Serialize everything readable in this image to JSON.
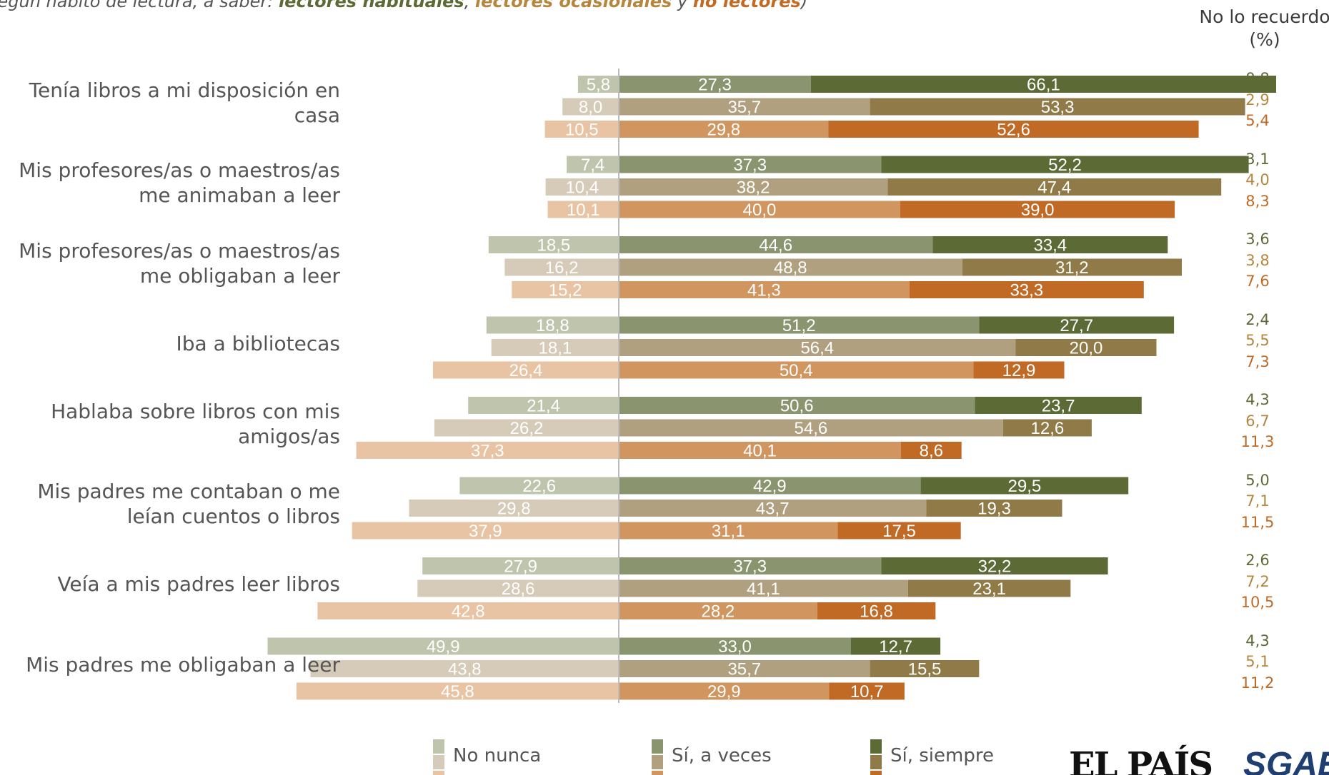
{
  "subtitle": {
    "prefix": "según hábito de lectura, a saber: ",
    "g1": "lectores habituales",
    "sep1": ", ",
    "g2": "lectores ocasionales",
    "sep2": " y ",
    "g3": "no lectores",
    "suffix": ")"
  },
  "nlr_header": {
    "line1": "No lo recuerdo",
    "line2": "(%)"
  },
  "legend": {
    "no_nunca": "No nunca",
    "si_a_veces": "Sí, a veces",
    "si_siempre": "Sí, siempre"
  },
  "logos": {
    "el_pais": "EL PAÍS",
    "sgae": "SGAE"
  },
  "colors": {
    "no_nunca": [
      "#bfc5ad",
      "#d6cbb8",
      "#e8c4a4"
    ],
    "si_a_veces": [
      "#8a9570",
      "#b1a07f",
      "#d1955f"
    ],
    "si_siempre": [
      "#5c6b35",
      "#8f7a48",
      "#c06a25"
    ],
    "nlr_text": [
      "#5c6b35",
      "#b5863d",
      "#c06a25"
    ]
  },
  "chart_data": {
    "type": "bar",
    "orientation": "horizontal-diverging",
    "groups": [
      "lectores habituales",
      "lectores ocasionales",
      "no lectores"
    ],
    "series_names": [
      "No nunca",
      "Sí, a veces",
      "Sí, siempre",
      "No lo recuerdo"
    ],
    "categories": [
      {
        "label": "Tenía libros a mi disposición en casa",
        "values": [
          {
            "no_nunca": "5,8",
            "si_a_veces": "27,3",
            "si_siempre": "66,1",
            "no_recuerdo": "0,8"
          },
          {
            "no_nunca": "8,0",
            "si_a_veces": "35,7",
            "si_siempre": "53,3",
            "no_recuerdo": "2,9"
          },
          {
            "no_nunca": "10,5",
            "si_a_veces": "29,8",
            "si_siempre": "52,6",
            "no_recuerdo": "5,4"
          }
        ]
      },
      {
        "label": "Mis profesores/as o maestros/as me animaban a leer",
        "values": [
          {
            "no_nunca": "7,4",
            "si_a_veces": "37,3",
            "si_siempre": "52,2",
            "no_recuerdo": "3,1"
          },
          {
            "no_nunca": "10,4",
            "si_a_veces": "38,2",
            "si_siempre": "47,4",
            "no_recuerdo": "4,0"
          },
          {
            "no_nunca": "10,1",
            "si_a_veces": "40,0",
            "si_siempre": "39,0",
            "no_recuerdo": "8,3"
          }
        ]
      },
      {
        "label": "Mis profesores/as o maestros/as me obligaban a leer",
        "values": [
          {
            "no_nunca": "18,5",
            "si_a_veces": "44,6",
            "si_siempre": "33,4",
            "no_recuerdo": "3,6"
          },
          {
            "no_nunca": "16,2",
            "si_a_veces": "48,8",
            "si_siempre": "31,2",
            "no_recuerdo": "3,8"
          },
          {
            "no_nunca": "15,2",
            "si_a_veces": "41,3",
            "si_siempre": "33,3",
            "no_recuerdo": "7,6"
          }
        ]
      },
      {
        "label": "Iba a bibliotecas",
        "values": [
          {
            "no_nunca": "18,8",
            "si_a_veces": "51,2",
            "si_siempre": "27,7",
            "no_recuerdo": "2,4"
          },
          {
            "no_nunca": "18,1",
            "si_a_veces": "56,4",
            "si_siempre": "20,0",
            "no_recuerdo": "5,5"
          },
          {
            "no_nunca": "26,4",
            "si_a_veces": "50,4",
            "si_siempre": "12,9",
            "no_recuerdo": "7,3"
          }
        ]
      },
      {
        "label": "Hablaba sobre libros con mis amigos/as",
        "values": [
          {
            "no_nunca": "21,4",
            "si_a_veces": "50,6",
            "si_siempre": "23,7",
            "no_recuerdo": "4,3"
          },
          {
            "no_nunca": "26,2",
            "si_a_veces": "54,6",
            "si_siempre": "12,6",
            "no_recuerdo": "6,7"
          },
          {
            "no_nunca": "37,3",
            "si_a_veces": "40,1",
            "si_siempre": "8,6",
            "no_recuerdo": "11,3"
          }
        ]
      },
      {
        "label": "Mis padres me contaban o me leían cuentos o libros",
        "values": [
          {
            "no_nunca": "22,6",
            "si_a_veces": "42,9",
            "si_siempre": "29,5",
            "no_recuerdo": "5,0"
          },
          {
            "no_nunca": "29,8",
            "si_a_veces": "43,7",
            "si_siempre": "19,3",
            "no_recuerdo": "7,1"
          },
          {
            "no_nunca": "37,9",
            "si_a_veces": "31,1",
            "si_siempre": "17,5",
            "no_recuerdo": "11,5"
          }
        ]
      },
      {
        "label": "Veía a mis padres leer libros",
        "values": [
          {
            "no_nunca": "27,9",
            "si_a_veces": "37,3",
            "si_siempre": "32,2",
            "no_recuerdo": "2,6"
          },
          {
            "no_nunca": "28,6",
            "si_a_veces": "41,1",
            "si_siempre": "23,1",
            "no_recuerdo": "7,2"
          },
          {
            "no_nunca": "42,8",
            "si_a_veces": "28,2",
            "si_siempre": "16,8",
            "no_recuerdo": "10,5"
          }
        ]
      },
      {
        "label": "Mis padres me obligaban a leer",
        "values": [
          {
            "no_nunca": "49,9",
            "si_a_veces": "33,0",
            "si_siempre": "12,7",
            "no_recuerdo": "4,3"
          },
          {
            "no_nunca": "43,8",
            "si_a_veces": "35,7",
            "si_siempre": "15,5",
            "no_recuerdo": "5,1"
          },
          {
            "no_nunca": "45,8",
            "si_a_veces": "29,9",
            "si_siempre": "10,7",
            "no_recuerdo": "11,2"
          }
        ]
      }
    ]
  }
}
